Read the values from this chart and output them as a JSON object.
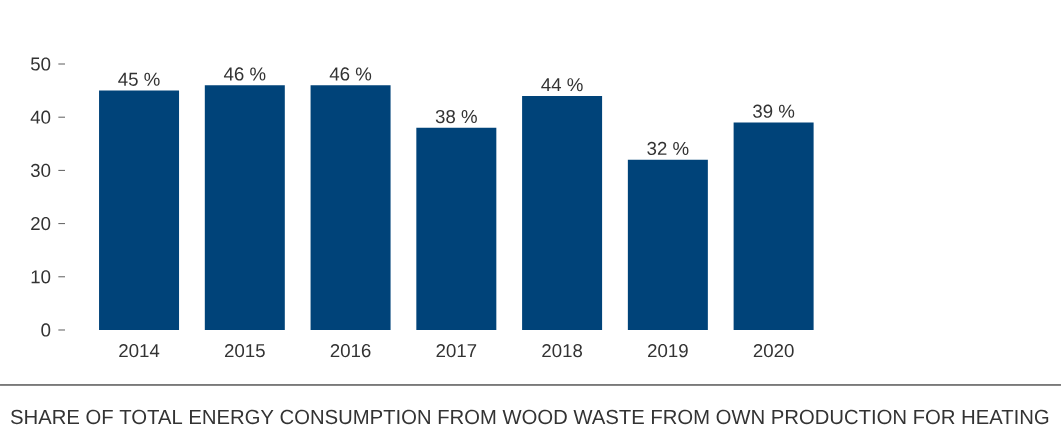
{
  "chart_data": {
    "type": "bar",
    "title": "SHARE OF TOTAL ENERGY CONSUMPTION FROM WOOD WASTE FROM OWN PRODUCTION FOR HEATING",
    "categories": [
      "2014",
      "2015",
      "2016",
      "2017",
      "2018",
      "2019",
      "2020"
    ],
    "values": [
      45,
      46,
      46,
      38,
      44,
      32,
      39
    ],
    "value_labels": [
      "45  %",
      "46 %",
      "46 %",
      "38 %",
      "44 %",
      "32 %",
      "39 %"
    ],
    "color": "#004379",
    "ylim": [
      0,
      50
    ],
    "yticks": [
      0,
      10,
      20,
      30,
      40,
      50
    ]
  }
}
